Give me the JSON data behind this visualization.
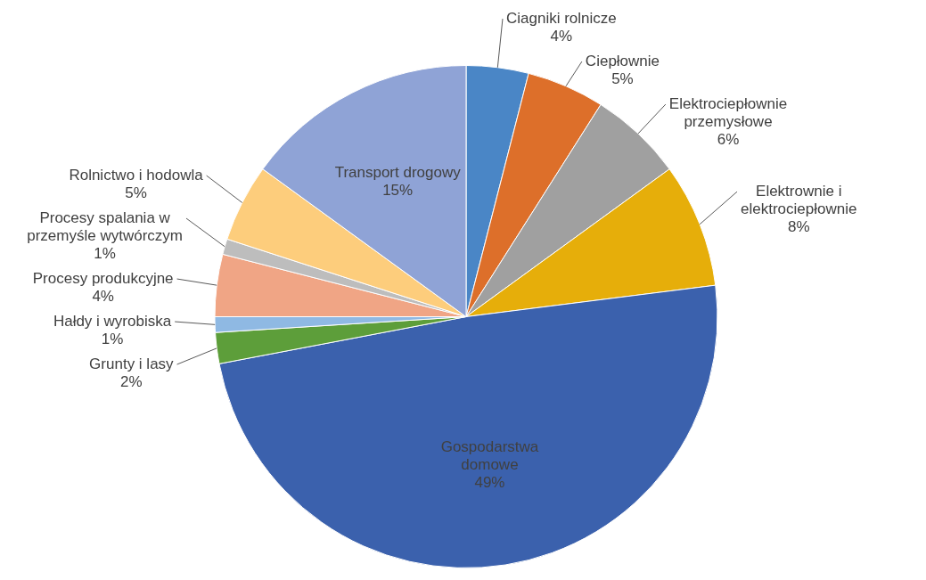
{
  "chart_data": {
    "type": "pie",
    "categories": [
      "Ciagniki rolnicze",
      "Ciepłownie",
      "Elektrociepłownie przemysłowe",
      "Elektrownie i elektrociepłownie",
      "Gospodarstwa domowe",
      "Grunty i lasy",
      "Hałdy i wyrobiska",
      "Procesy produkcyjne",
      "Procesy spalania w przemyśle wytwórczym",
      "Rolnictwo i hodowla",
      "Transport drogowy"
    ],
    "values": [
      4,
      5,
      6,
      8,
      49,
      2,
      1,
      4,
      1,
      5,
      15
    ],
    "colors": [
      "#4a86c6",
      "#dd6f2a",
      "#a0a0a0",
      "#e6ae0a",
      "#3b61ad",
      "#5d9e3a",
      "#8fb9e3",
      "#f0a585",
      "#bdbdbd",
      "#fdcd7c",
      "#8fa3d6"
    ],
    "value_labels": [
      "4%",
      "5%",
      "6%",
      "8%",
      "49%",
      "2%",
      "1%",
      "4%",
      "1%",
      "5%",
      "15%"
    ],
    "legend": false
  }
}
